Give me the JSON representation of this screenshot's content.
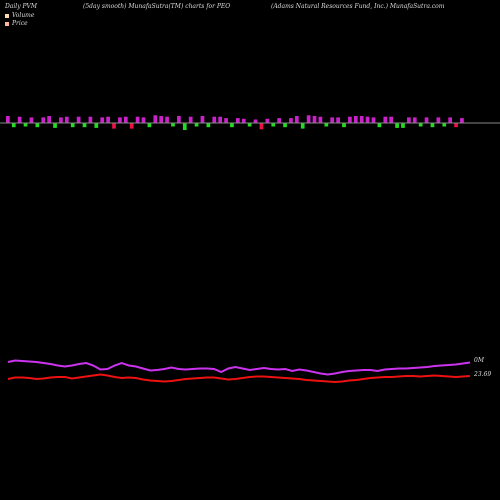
{
  "header": {
    "left": "Daily PVM",
    "middle": "(5day smooth) MunafaSutra(TM) charts for PEO",
    "right": "(Adams Natural Resources Fund, Inc.) MunafaSutra.com"
  },
  "legend": {
    "volume_label": "Volume",
    "price_label": "Price",
    "volume_color": "#ffd8b0",
    "price_color": "#ffb4a0"
  },
  "colors": {
    "background": "#000000",
    "volume_up": "#cc22cc",
    "volume_down": "#22dd22",
    "volume_red": "#ee1144",
    "baseline": "#888888",
    "pvm_line": "#cc33ee",
    "price_line": "#ee1111"
  },
  "labels": {
    "volume_axis": "0M",
    "price_last": "23.69"
  },
  "chart_data": {
    "type": "bar",
    "volume_series": [
      {
        "v": 1.0,
        "c": "up"
      },
      {
        "v": -0.6,
        "c": "down"
      },
      {
        "v": 0.9,
        "c": "up"
      },
      {
        "v": -0.5,
        "c": "down"
      },
      {
        "v": 0.8,
        "c": "up"
      },
      {
        "v": -0.6,
        "c": "down"
      },
      {
        "v": 0.8,
        "c": "up"
      },
      {
        "v": 1.0,
        "c": "up"
      },
      {
        "v": -0.7,
        "c": "down"
      },
      {
        "v": 0.8,
        "c": "up"
      },
      {
        "v": 0.9,
        "c": "up"
      },
      {
        "v": -0.6,
        "c": "down"
      },
      {
        "v": 0.9,
        "c": "up"
      },
      {
        "v": -0.6,
        "c": "down"
      },
      {
        "v": 0.9,
        "c": "up"
      },
      {
        "v": -0.7,
        "c": "down"
      },
      {
        "v": 0.8,
        "c": "up"
      },
      {
        "v": 0.9,
        "c": "up"
      },
      {
        "v": -0.8,
        "c": "red"
      },
      {
        "v": 0.8,
        "c": "up"
      },
      {
        "v": 0.9,
        "c": "up"
      },
      {
        "v": -0.8,
        "c": "red"
      },
      {
        "v": 0.9,
        "c": "up"
      },
      {
        "v": 0.8,
        "c": "up"
      },
      {
        "v": -0.6,
        "c": "down"
      },
      {
        "v": 1.1,
        "c": "up"
      },
      {
        "v": 1.0,
        "c": "up"
      },
      {
        "v": 0.9,
        "c": "up"
      },
      {
        "v": -0.5,
        "c": "down"
      },
      {
        "v": 1.0,
        "c": "up"
      },
      {
        "v": -1.0,
        "c": "down"
      },
      {
        "v": 0.9,
        "c": "up"
      },
      {
        "v": -0.5,
        "c": "down"
      },
      {
        "v": 1.0,
        "c": "up"
      },
      {
        "v": -0.6,
        "c": "down"
      },
      {
        "v": 0.9,
        "c": "up"
      },
      {
        "v": 0.9,
        "c": "up"
      },
      {
        "v": 0.7,
        "c": "up"
      },
      {
        "v": -0.6,
        "c": "down"
      },
      {
        "v": 0.7,
        "c": "up"
      },
      {
        "v": 0.6,
        "c": "up"
      },
      {
        "v": -0.5,
        "c": "down"
      },
      {
        "v": 0.5,
        "c": "up"
      },
      {
        "v": -0.9,
        "c": "red"
      },
      {
        "v": 0.6,
        "c": "up"
      },
      {
        "v": -0.5,
        "c": "down"
      },
      {
        "v": 0.7,
        "c": "up"
      },
      {
        "v": -0.6,
        "c": "down"
      },
      {
        "v": 0.7,
        "c": "up"
      },
      {
        "v": 1.0,
        "c": "up"
      },
      {
        "v": -0.8,
        "c": "down"
      },
      {
        "v": 1.1,
        "c": "up"
      },
      {
        "v": 1.0,
        "c": "up"
      },
      {
        "v": 0.9,
        "c": "up"
      },
      {
        "v": -0.5,
        "c": "down"
      },
      {
        "v": 0.8,
        "c": "up"
      },
      {
        "v": 0.8,
        "c": "up"
      },
      {
        "v": -0.6,
        "c": "down"
      },
      {
        "v": 0.9,
        "c": "up"
      },
      {
        "v": 1.0,
        "c": "up"
      },
      {
        "v": 1.0,
        "c": "up"
      },
      {
        "v": 0.9,
        "c": "up"
      },
      {
        "v": 0.8,
        "c": "up"
      },
      {
        "v": -0.6,
        "c": "down"
      },
      {
        "v": 0.9,
        "c": "up"
      },
      {
        "v": 0.9,
        "c": "up"
      },
      {
        "v": -0.7,
        "c": "down"
      },
      {
        "v": -0.7,
        "c": "down"
      },
      {
        "v": 0.8,
        "c": "up"
      },
      {
        "v": 0.8,
        "c": "up"
      },
      {
        "v": -0.5,
        "c": "down"
      },
      {
        "v": 0.8,
        "c": "up"
      },
      {
        "v": -0.6,
        "c": "down"
      },
      {
        "v": 0.8,
        "c": "up"
      },
      {
        "v": -0.5,
        "c": "down"
      },
      {
        "v": 0.8,
        "c": "up"
      },
      {
        "v": -0.6,
        "c": "red"
      },
      {
        "v": 0.7,
        "c": "up"
      }
    ],
    "pvm_line": [
      4.0,
      4.3,
      4.2,
      4.1,
      4.0,
      3.8,
      3.6,
      3.3,
      3.1,
      3.3,
      3.6,
      3.8,
      3.3,
      2.5,
      2.6,
      3.3,
      3.8,
      3.3,
      3.1,
      2.7,
      2.3,
      2.4,
      2.6,
      2.9,
      2.6,
      2.5,
      2.6,
      2.7,
      2.7,
      2.6,
      2.0,
      2.7,
      3.0,
      2.7,
      2.4,
      2.6,
      2.8,
      2.6,
      2.5,
      2.6,
      2.2,
      2.5,
      2.3,
      2.0,
      1.7,
      1.5,
      1.7,
      2.0,
      2.2,
      2.3,
      2.4,
      2.4,
      2.2,
      2.5,
      2.6,
      2.7,
      2.7,
      2.8,
      2.9,
      3.0,
      3.2,
      3.3,
      3.4,
      3.5,
      3.7,
      3.9
    ],
    "price_line": [
      2.0,
      2.3,
      2.3,
      2.2,
      2.0,
      2.1,
      2.3,
      2.4,
      2.4,
      2.1,
      2.3,
      2.5,
      2.7,
      2.9,
      2.7,
      2.4,
      2.2,
      2.3,
      2.2,
      1.9,
      1.7,
      1.6,
      1.5,
      1.6,
      1.8,
      2.0,
      2.1,
      2.2,
      2.3,
      2.3,
      2.1,
      1.9,
      2.0,
      2.2,
      2.4,
      2.5,
      2.5,
      2.4,
      2.3,
      2.2,
      2.1,
      2.0,
      1.8,
      1.7,
      1.6,
      1.5,
      1.4,
      1.5,
      1.7,
      1.8,
      2.0,
      2.2,
      2.3,
      2.4,
      2.4,
      2.5,
      2.6,
      2.6,
      2.5,
      2.6,
      2.7,
      2.6,
      2.5,
      2.4,
      2.5,
      2.6
    ]
  }
}
